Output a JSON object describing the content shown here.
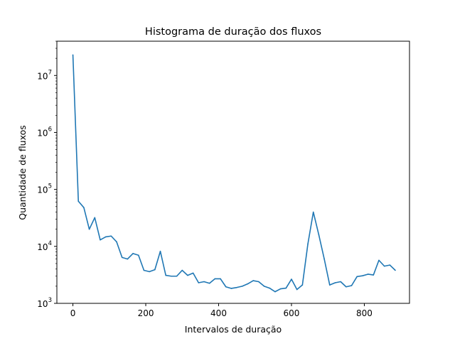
{
  "chart_data": {
    "type": "line",
    "title": "Histograma de duração dos fluxos",
    "xlabel": "Intervalos de duração",
    "ylabel": "Quantidade de fluxos",
    "xlim": [
      -44,
      924
    ],
    "ylim": [
      1000,
      40000000
    ],
    "yscale": "log",
    "grid": false,
    "x_ticks": [
      0,
      200,
      400,
      600,
      800
    ],
    "x_tick_labels": [
      "0",
      "200",
      "400",
      "600",
      "800"
    ],
    "y_ticks": [
      {
        "value": 1000,
        "base": "10",
        "exp": "3"
      },
      {
        "value": 10000,
        "base": "10",
        "exp": "4"
      },
      {
        "value": 100000,
        "base": "10",
        "exp": "5"
      },
      {
        "value": 1000000,
        "base": "10",
        "exp": "6"
      },
      {
        "value": 10000000,
        "base": "10",
        "exp": "7"
      }
    ],
    "series": [
      {
        "color": "#1f77b4",
        "x": [
          0,
          15,
          30,
          45,
          60,
          75,
          90,
          105,
          120,
          135,
          150,
          165,
          180,
          195,
          210,
          225,
          240,
          255,
          270,
          285,
          300,
          315,
          330,
          345,
          360,
          375,
          390,
          405,
          420,
          435,
          450,
          465,
          480,
          495,
          510,
          525,
          540,
          555,
          570,
          585,
          600,
          615,
          630,
          645,
          660,
          675,
          690,
          705,
          720,
          735,
          750,
          765,
          780,
          795,
          810,
          825,
          840,
          855,
          870,
          885
        ],
        "values": [
          23000000,
          62000,
          48000,
          20000,
          32000,
          13000,
          14700,
          15200,
          12000,
          6400,
          6000,
          7500,
          7000,
          3800,
          3600,
          3900,
          8200,
          3100,
          3000,
          3000,
          3800,
          3100,
          3400,
          2300,
          2400,
          2250,
          2700,
          2700,
          1950,
          1830,
          1900,
          2000,
          2200,
          2500,
          2400,
          2000,
          1850,
          1600,
          1800,
          1850,
          2650,
          1750,
          2100,
          11000,
          40000,
          16000,
          6000,
          2100,
          2300,
          2400,
          1950,
          2050,
          2950,
          3050,
          3250,
          3150,
          5700,
          4500,
          4700,
          3800
        ]
      }
    ]
  }
}
